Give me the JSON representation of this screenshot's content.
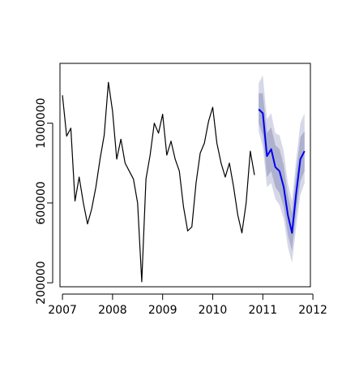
{
  "chart_data": {
    "type": "line",
    "title": "",
    "xlabel": "",
    "ylabel": "",
    "xlim": [
      2006.95,
      2011.95
    ],
    "ylim": [
      180000,
      1300000
    ],
    "x_ticks": [
      2007,
      2008,
      2009,
      2010,
      2011,
      2012
    ],
    "y_ticks": [
      200000,
      600000,
      1000000
    ],
    "x_tick_labels": [
      "2007",
      "2008",
      "2009",
      "2010",
      "2011",
      "2012"
    ],
    "y_tick_labels": [
      "200000",
      "600000",
      "1000000"
    ],
    "grid": false,
    "legend": "none",
    "colors": {
      "observed": "#000000",
      "forecast": "#0000ee",
      "band_95": "#d6d8e8",
      "band_80": "#adb1cf",
      "axis": "#000000"
    },
    "series": [
      {
        "role": "observed",
        "x": [
          2007.0,
          2007.083,
          2007.167,
          2007.25,
          2007.333,
          2007.417,
          2007.5,
          2007.583,
          2007.667,
          2007.75,
          2007.833,
          2007.917,
          2008.0,
          2008.083,
          2008.167,
          2008.25,
          2008.333,
          2008.417,
          2008.5,
          2008.583,
          2008.667,
          2008.75,
          2008.833,
          2008.917,
          2009.0,
          2009.083,
          2009.167,
          2009.25,
          2009.333,
          2009.417,
          2009.5,
          2009.583,
          2009.667,
          2009.75,
          2009.833,
          2009.917,
          2010.0,
          2010.083,
          2010.167,
          2010.25,
          2010.333,
          2010.417,
          2010.5,
          2010.583,
          2010.667,
          2010.75,
          2010.833
        ],
        "values": [
          1140000,
          935000,
          975000,
          610000,
          730000,
          600000,
          495000,
          570000,
          680000,
          820000,
          940000,
          1205000,
          1060000,
          820000,
          920000,
          800000,
          760000,
          720000,
          600000,
          205000,
          720000,
          840000,
          1000000,
          950000,
          1045000,
          840000,
          910000,
          820000,
          760000,
          580000,
          460000,
          480000,
          700000,
          850000,
          900000,
          1010000,
          1080000,
          900000,
          800000,
          730000,
          800000,
          680000,
          540000,
          450000,
          600000,
          860000,
          740000
        ]
      },
      {
        "role": "forecast",
        "x": [
          2010.917,
          2011.0,
          2011.083,
          2011.167,
          2011.25,
          2011.333,
          2011.417,
          2011.5,
          2011.583,
          2011.667,
          2011.75,
          2011.833
        ],
        "values": [
          1070000,
          1050000,
          835000,
          870000,
          780000,
          760000,
          680000,
          540000,
          450000,
          650000,
          820000,
          860000
        ],
        "lo80": [
          1000000,
          940000,
          730000,
          760000,
          680000,
          650000,
          580000,
          440000,
          360000,
          550000,
          710000,
          760000
        ],
        "hi80": [
          1150000,
          1150000,
          950000,
          980000,
          890000,
          870000,
          790000,
          640000,
          550000,
          760000,
          930000,
          960000
        ],
        "lo95": [
          960000,
          880000,
          680000,
          700000,
          620000,
          590000,
          520000,
          380000,
          300000,
          480000,
          640000,
          700000
        ],
        "hi95": [
          1200000,
          1240000,
          1020000,
          1050000,
          950000,
          940000,
          860000,
          700000,
          610000,
          820000,
          1000000,
          1050000
        ]
      }
    ]
  }
}
